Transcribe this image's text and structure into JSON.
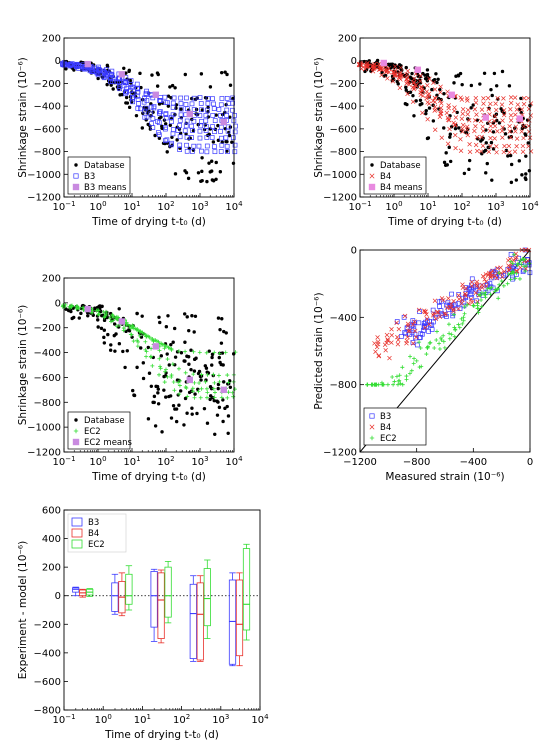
{
  "chart_data": [
    {
      "type": "scatter",
      "xscale": "log",
      "xlim": [
        0.1,
        10000
      ],
      "ylim": [
        -1200,
        200
      ],
      "yticks": [
        200,
        0,
        -200,
        -400,
        -600,
        -800,
        -1000,
        -1200
      ],
      "xlabel": "Time of drying t-t₀ (d)",
      "ylabel": "Shrinkage strain (10⁻⁶)",
      "legend_position": "bottom-left",
      "legend": [
        "Database",
        "B3",
        "B3 means"
      ],
      "colors": {
        "database": "#000000",
        "model": "#3b3bff",
        "means": "#c98ae0"
      },
      "series": [
        {
          "name": "Database",
          "marker": "dot"
        },
        {
          "name": "B3",
          "marker": "open-square"
        },
        {
          "name": "B3 means",
          "marker": "filled-square",
          "x": [
            0.5,
            5,
            50,
            500,
            5000
          ],
          "y": [
            -30,
            -120,
            -300,
            -470,
            -540
          ]
        }
      ]
    },
    {
      "type": "scatter",
      "xscale": "log",
      "xlim": [
        0.1,
        10000
      ],
      "ylim": [
        -1200,
        200
      ],
      "yticks": [
        200,
        0,
        -200,
        -400,
        -600,
        -800,
        -1000,
        -1200
      ],
      "xlabel": "Time of drying t-t₀ (d)",
      "ylabel": "Shrinkage strain (10⁻⁶)",
      "legend_position": "bottom-left",
      "legend": [
        "Database",
        "B4",
        "B4 means"
      ],
      "colors": {
        "database": "#000000",
        "model": "#e8302a",
        "means": "#e88ae0"
      },
      "series": [
        {
          "name": "Database",
          "marker": "dot"
        },
        {
          "name": "B4",
          "marker": "x"
        },
        {
          "name": "B4 means",
          "marker": "filled-square",
          "x": [
            0.5,
            5,
            50,
            500,
            5000
          ],
          "y": [
            -20,
            -80,
            -300,
            -500,
            -510
          ]
        }
      ]
    },
    {
      "type": "scatter",
      "xscale": "log",
      "xlim": [
        0.1,
        10000
      ],
      "ylim": [
        -1200,
        200
      ],
      "yticks": [
        200,
        0,
        -200,
        -400,
        -600,
        -800,
        -1000,
        -1200
      ],
      "xlabel": "Time of drying t-t₀ (d)",
      "ylabel": "Shrinkage strain (10⁻⁶)",
      "legend_position": "bottom-left",
      "legend": [
        "Database",
        "EC2",
        "EC2 means"
      ],
      "colors": {
        "database": "#000000",
        "model": "#33dd33",
        "means": "#c98ae0"
      },
      "series": [
        {
          "name": "Database",
          "marker": "dot"
        },
        {
          "name": "EC2",
          "marker": "plus"
        },
        {
          "name": "EC2 means",
          "marker": "filled-square",
          "x": [
            0.5,
            5,
            50,
            500,
            5000
          ],
          "y": [
            -50,
            -150,
            -350,
            -620,
            -700
          ]
        }
      ]
    },
    {
      "type": "scatter",
      "xlim": [
        -1200,
        0
      ],
      "ylim": [
        -1200,
        0
      ],
      "xticks": [
        -1200,
        -800,
        -400,
        0
      ],
      "yticks": [
        0,
        -400,
        -800,
        -1200
      ],
      "xlabel": "Measured strain (10⁻⁶)",
      "ylabel": "Predicted strain (10⁻⁶)",
      "legend_position": "bottom-left",
      "legend": [
        "B3",
        "B4",
        "EC2"
      ],
      "colors": {
        "B3": "#3b3bff",
        "B4": "#e8302a",
        "EC2": "#33dd33",
        "identity": "#000000"
      },
      "identity_line": true
    },
    {
      "type": "box",
      "xscale": "log",
      "xlim": [
        0.1,
        10000
      ],
      "ylim": [
        -800,
        600
      ],
      "yticks": [
        600,
        400,
        200,
        0,
        -200,
        -400,
        -600,
        -800
      ],
      "xlabel": "Time of drying t-t₀ (d)",
      "ylabel": "Experiment - model (10⁻⁶)",
      "zero_line": "dotted",
      "legend_position": "top-left",
      "legend": [
        "B3",
        "B4",
        "EC2"
      ],
      "colors": {
        "B3": "#3b3bff",
        "B4": "#e8302a",
        "EC2": "#33dd33"
      },
      "groups_x": [
        0.3,
        3,
        30,
        300,
        3000
      ],
      "series": [
        {
          "name": "B3",
          "boxes": [
            {
              "wl": 0,
              "q1": 25,
              "med": 45,
              "q3": 55,
              "wh": 60
            },
            {
              "wl": -130,
              "q1": -110,
              "med": 0,
              "q3": 90,
              "wh": 150
            },
            {
              "wl": -320,
              "q1": -220,
              "med": 0,
              "q3": 170,
              "wh": 185
            },
            {
              "wl": -460,
              "q1": -440,
              "med": -125,
              "q3": 80,
              "wh": 140
            },
            {
              "wl": -490,
              "q1": -480,
              "med": -180,
              "q3": 110,
              "wh": 160
            }
          ]
        },
        {
          "name": "B4",
          "boxes": [
            {
              "wl": -10,
              "q1": 0,
              "med": 20,
              "q3": 40,
              "wh": 45
            },
            {
              "wl": -140,
              "q1": -120,
              "med": -10,
              "q3": 100,
              "wh": 160
            },
            {
              "wl": -330,
              "q1": -300,
              "med": -30,
              "q3": 160,
              "wh": 180
            },
            {
              "wl": -460,
              "q1": -450,
              "med": -130,
              "q3": 90,
              "wh": 140
            },
            {
              "wl": -490,
              "q1": -420,
              "med": -200,
              "q3": 110,
              "wh": 160
            }
          ]
        },
        {
          "name": "EC2",
          "boxes": [
            {
              "wl": -5,
              "q1": 5,
              "med": 25,
              "q3": 45,
              "wh": 50
            },
            {
              "wl": -100,
              "q1": -60,
              "med": 0,
              "q3": 150,
              "wh": 210
            },
            {
              "wl": -190,
              "q1": -150,
              "med": 0,
              "q3": 200,
              "wh": 240
            },
            {
              "wl": -300,
              "q1": -210,
              "med": -20,
              "q3": 190,
              "wh": 250
            },
            {
              "wl": -310,
              "q1": -240,
              "med": -60,
              "q3": 330,
              "wh": 360
            }
          ]
        }
      ]
    }
  ]
}
